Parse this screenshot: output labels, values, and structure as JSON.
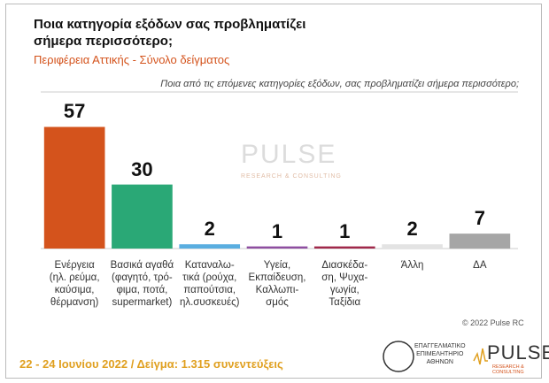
{
  "chart_data": {
    "type": "bar",
    "title": "Ποια κατηγορία εξόδων σας προβληματίζει\nσήμερα περισσότερο;",
    "subtitle": "Περιφέρεια Αττικής - Σύνολο δείγματος",
    "question": "Ποια από τις επόμενες κατηγορίες εξόδων, σας προβληματίζει σήμερα περισσότερο;",
    "categories": [
      "Ενέργεια\n(ηλ. ρεύμα,\nκαύσιμα,\nθέρμανση)",
      "Βασικά αγαθά\n(φαγητό, τρό-\nφιμα, ποτά,\nsupermarket)",
      "Καταναλω-\nτικά (ρούχα,\nπαπούτσια,\nηλ.συσκευές)",
      "Υγεία,\nΕκπαίδευση,\nΚαλλωπι-\nσμός",
      "Διασκέδα-\nση, Ψυχα-\nγωγία,\nΤαξίδια",
      "Άλλη",
      "ΔΑ"
    ],
    "values": [
      57,
      30,
      2,
      1,
      1,
      2,
      7
    ],
    "colors": [
      "#d4531c",
      "#2aa876",
      "#5aaee0",
      "#8e4ea0",
      "#a0294a",
      "#e3e3e3",
      "#a6a6a6"
    ],
    "ylim": [
      0,
      80
    ]
  },
  "watermark": {
    "name": "PULSE",
    "tagline": "RESEARCH & CONSULTING"
  },
  "footer": "22 - 24 Ιουνίου  2022  /  Δείγμα:  1.315 συνεντεύξεις",
  "copyright": "© 2022 Pulse RC",
  "logos": {
    "chamber": "ΕΠΑΓΓΕΛΜΑΤΙΚΟ\nΕΠΙΜΕΛΗΤΗΡΙΟ\nΑΘΗΝΩΝ",
    "pulse": "PULSE",
    "pulse_tagline": "RESEARCH & CONSULTING"
  }
}
